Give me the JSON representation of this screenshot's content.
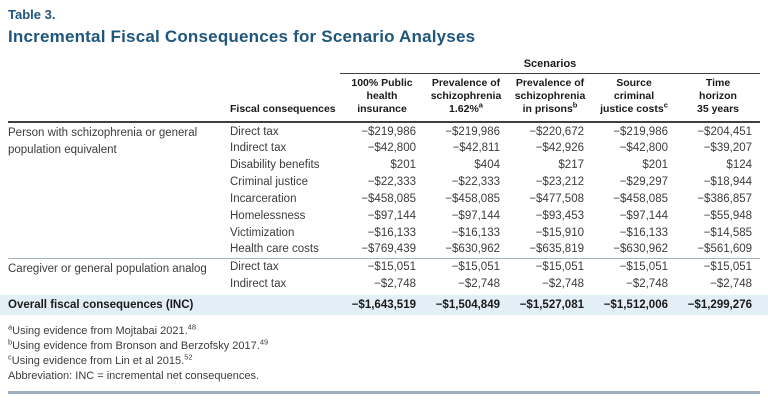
{
  "title": {
    "label": "Table 3.",
    "heading": "Incremental Fiscal Consequences for Scenario Analyses"
  },
  "colors": {
    "heading_blue": "#20567c",
    "overall_band_bg": "#e3eff7",
    "dark_rule": "#3f3f3f",
    "light_rule": "#9fb4c4",
    "bottom_rule": "#9fafbf"
  },
  "table": {
    "scenarios_label": "Scenarios",
    "fiscal_header": "Fiscal consequences",
    "scenario_headers": [
      {
        "lines": "100% Public\nhealth\ninsurance",
        "sup": ""
      },
      {
        "lines": "Prevalence of\nschizophrenia\n1.62%",
        "sup": "a"
      },
      {
        "lines": "Prevalence of\nschizophrenia\nin prisons",
        "sup": "b"
      },
      {
        "lines": "Source\ncriminal\njustice costs",
        "sup": "c"
      },
      {
        "lines": "Time\nhorizon\n35 years",
        "sup": ""
      }
    ],
    "groups": [
      {
        "category": "Person with schizophrenia or general population equivalent",
        "rows": [
          {
            "label": "Direct tax",
            "values": [
              "−$219,986",
              "−$219,986",
              "−$220,672",
              "−$219,986",
              "−$204,451"
            ]
          },
          {
            "label": "Indirect tax",
            "values": [
              "−$42,800",
              "−$42,811",
              "−$42,926",
              "−$42,800",
              "−$39,207"
            ]
          },
          {
            "label": "Disability benefits",
            "values": [
              "$201",
              "$404",
              "$217",
              "$201",
              "$124"
            ]
          },
          {
            "label": "Criminal justice",
            "values": [
              "−$22,333",
              "−$22,333",
              "−$23,212",
              "−$29,297",
              "−$18,944"
            ]
          },
          {
            "label": "Incarceration",
            "values": [
              "−$458,085",
              "−$458,085",
              "−$477,508",
              "−$458,085",
              "−$386,857"
            ]
          },
          {
            "label": "Homelessness",
            "values": [
              "−$97,144",
              "−$97,144",
              "−$93,453",
              "−$97,144",
              "−$55,948"
            ]
          },
          {
            "label": "Victimization",
            "values": [
              "−$16,133",
              "−$16,133",
              "−$15,910",
              "−$16,133",
              "−$14,585"
            ]
          },
          {
            "label": "Health care costs",
            "values": [
              "−$769,439",
              "−$630,962",
              "−$635,819",
              "−$630,962",
              "−$561,609"
            ]
          }
        ]
      },
      {
        "category": "Caregiver or general population analog",
        "rows": [
          {
            "label": "Direct tax",
            "values": [
              "−$15,051",
              "−$15,051",
              "−$15,051",
              "−$15,051",
              "−$15,051"
            ]
          },
          {
            "label": "Indirect tax",
            "values": [
              "−$2,748",
              "−$2,748",
              "−$2,748",
              "−$2,748",
              "−$2,748"
            ]
          }
        ]
      }
    ],
    "overall": {
      "label": "Overall fiscal consequences (INC)",
      "values": [
        "−$1,643,519",
        "−$1,504,849",
        "−$1,527,081",
        "−$1,512,006",
        "−$1,299,276"
      ]
    }
  },
  "footnotes": [
    {
      "sup": "a",
      "text": "Using evidence from Mojtabai 2021.",
      "ref": "48"
    },
    {
      "sup": "b",
      "text": "Using evidence from Bronson and Berzofsky 2017.",
      "ref": "49"
    },
    {
      "sup": "c",
      "text": "Using evidence from Lin et al 2015.",
      "ref": "52"
    },
    {
      "sup": "",
      "text": "Abbreviation: INC = incremental net consequences.",
      "ref": ""
    }
  ]
}
